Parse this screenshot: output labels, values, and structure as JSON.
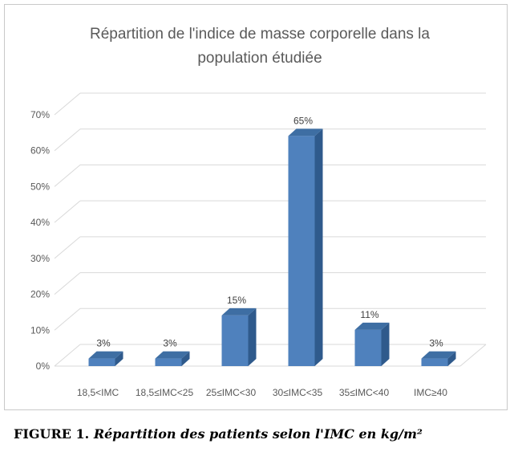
{
  "chart_data": {
    "type": "bar",
    "title_lines": [
      "Répartition de l'indice de masse corporelle dans la",
      "population étudiée"
    ],
    "categories": [
      "18,5<IMC",
      "18,5≤IMC<25",
      "25≤IMC<30",
      "30≤IMC<35",
      "35≤IMC<40",
      "IMC≥40"
    ],
    "values": [
      3,
      3,
      15,
      65,
      11,
      3
    ],
    "value_labels": [
      "3%",
      "3%",
      "15%",
      "65%",
      "11%",
      "3%"
    ],
    "y_ticks": [
      "0%",
      "10%",
      "20%",
      "30%",
      "40%",
      "50%",
      "60%",
      "70%"
    ],
    "ylim": [
      0,
      70
    ],
    "grid": true,
    "style": "3d-column",
    "colors": {
      "bar_front": "#4f81bd",
      "bar_top": "#3e6ea3",
      "bar_side": "#2f5a8c",
      "grid": "#d9d9d9"
    }
  },
  "caption": {
    "prefix": "FIGURE 1.",
    "text": "Répartition des patients selon l'IMC en kg/m²"
  }
}
